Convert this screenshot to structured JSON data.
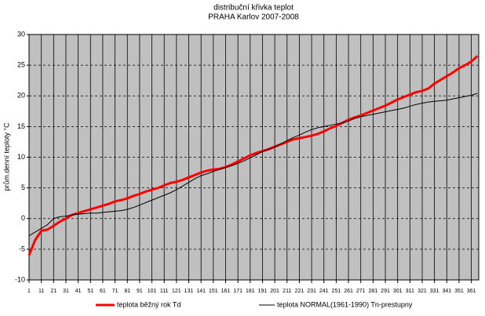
{
  "chart_data": {
    "type": "line",
    "title": "distribuční křivka teplot",
    "subtitle": "PRAHA Karlov 2007-2008",
    "y_label": "prům.denní teploty °C",
    "x": [
      1,
      6,
      11,
      16,
      21,
      26,
      31,
      36,
      41,
      46,
      51,
      56,
      61,
      66,
      71,
      76,
      81,
      86,
      91,
      96,
      101,
      106,
      111,
      116,
      121,
      126,
      131,
      136,
      141,
      146,
      151,
      156,
      161,
      166,
      171,
      176,
      181,
      186,
      191,
      196,
      201,
      206,
      211,
      216,
      221,
      226,
      231,
      236,
      241,
      246,
      251,
      256,
      261,
      266,
      271,
      276,
      281,
      286,
      291,
      296,
      301,
      306,
      311,
      316,
      321,
      326,
      331,
      336,
      341,
      346,
      351,
      356,
      361,
      366
    ],
    "series": [
      {
        "name": "teplota běžný rok Td",
        "color": "#ff0000",
        "values": [
          -6,
          -3.5,
          -2,
          -1.8,
          -1.2,
          -0.5,
          0,
          0.6,
          0.9,
          1.2,
          1.5,
          1.8,
          2.1,
          2.4,
          2.8,
          3.0,
          3.3,
          3.7,
          4.0,
          4.4,
          4.7,
          5.0,
          5.4,
          5.8,
          6.0,
          6.3,
          6.7,
          7.1,
          7.5,
          7.8,
          8.0,
          8.1,
          8.4,
          8.8,
          9.3,
          9.8,
          10.3,
          10.7,
          11.0,
          11.3,
          11.7,
          12.1,
          12.5,
          12.9,
          13.1,
          13.3,
          13.5,
          13.8,
          14.2,
          14.7,
          15.1,
          15.6,
          16.1,
          16.5,
          16.8,
          17.2,
          17.6,
          18.0,
          18.4,
          18.9,
          19.4,
          19.8,
          20.2,
          20.6,
          20.8,
          21.2,
          22.0,
          22.6,
          23.2,
          23.8,
          24.5,
          25.0,
          25.6,
          26.5
        ]
      },
      {
        "name": "teplota NORMAL(1961-1990) Tn-prestupny",
        "color": "#000000",
        "values": [
          -2.8,
          -2.2,
          -1.6,
          -1.0,
          0,
          0.3,
          0.4,
          0.6,
          0.7,
          0.8,
          0.9,
          0.9,
          1.0,
          1.1,
          1.2,
          1.3,
          1.5,
          1.8,
          2.2,
          2.6,
          3.0,
          3.4,
          3.8,
          4.2,
          4.7,
          5.3,
          5.9,
          6.5,
          7.0,
          7.3,
          7.7,
          8.0,
          8.3,
          8.6,
          9.0,
          9.4,
          9.9,
          10.4,
          10.9,
          11.3,
          11.7,
          12.2,
          12.7,
          13.2,
          13.6,
          14.1,
          14.5,
          14.8,
          15.0,
          15.2,
          15.4,
          15.6,
          15.9,
          16.3,
          16.6,
          16.8,
          17.0,
          17.2,
          17.4,
          17.6,
          17.8,
          18.0,
          18.3,
          18.6,
          18.8,
          19.0,
          19.1,
          19.2,
          19.3,
          19.5,
          19.7,
          19.9,
          20.1,
          20.4
        ]
      }
    ],
    "xlim": [
      1,
      367
    ],
    "xticks": [
      1,
      11,
      21,
      31,
      41,
      51,
      61,
      71,
      81,
      91,
      101,
      111,
      121,
      131,
      141,
      151,
      161,
      171,
      181,
      191,
      201,
      211,
      221,
      231,
      241,
      251,
      261,
      271,
      281,
      291,
      301,
      311,
      321,
      331,
      341,
      351,
      361
    ],
    "ylim": [
      -10,
      30
    ],
    "yticks": [
      -10,
      -5,
      0,
      5,
      10,
      15,
      20,
      25,
      30
    ],
    "grid": true,
    "background": "#c0c0c0",
    "legend": "bottom"
  }
}
